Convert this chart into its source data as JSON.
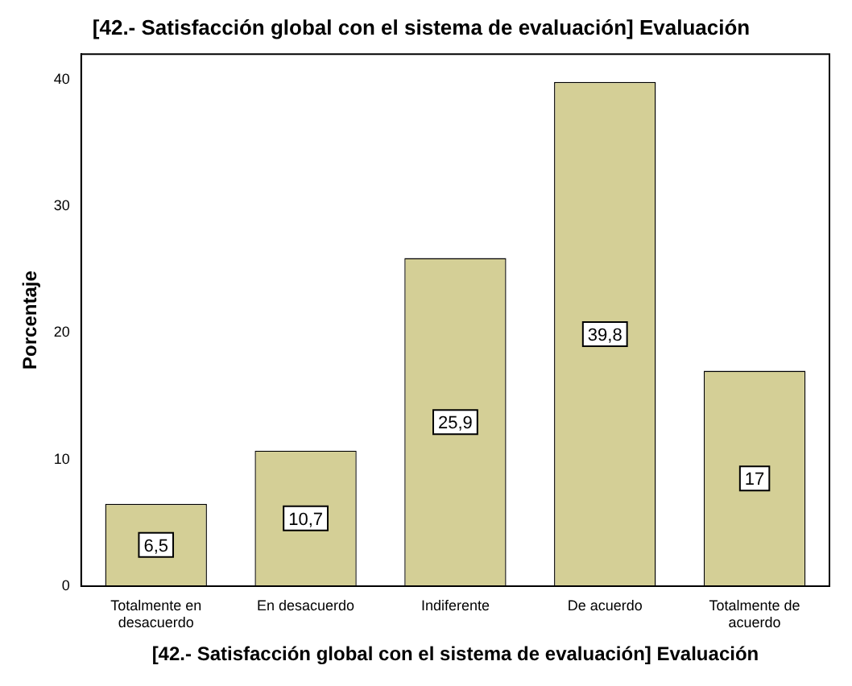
{
  "chart_data": {
    "type": "bar",
    "title": "[42.- Satisfacción global con el sistema de evaluación] Evaluación",
    "xlabel": "[42.- Satisfacción global con el sistema de evaluación] Evaluación",
    "ylabel": "Porcentaje",
    "categories": [
      "Totalmente en desacuerdo",
      "En desacuerdo",
      "Indiferente",
      "De acuerdo",
      "Totalmente de acuerdo"
    ],
    "values": [
      6.5,
      10.7,
      25.9,
      39.8,
      17
    ],
    "value_labels": [
      "6,5",
      "10,7",
      "25,9",
      "39,8",
      "17"
    ],
    "color": "#d4cf96",
    "ylim": [
      0,
      42
    ],
    "yticks": [
      0,
      10,
      20,
      30,
      40
    ],
    "grid": false,
    "legend": false
  }
}
